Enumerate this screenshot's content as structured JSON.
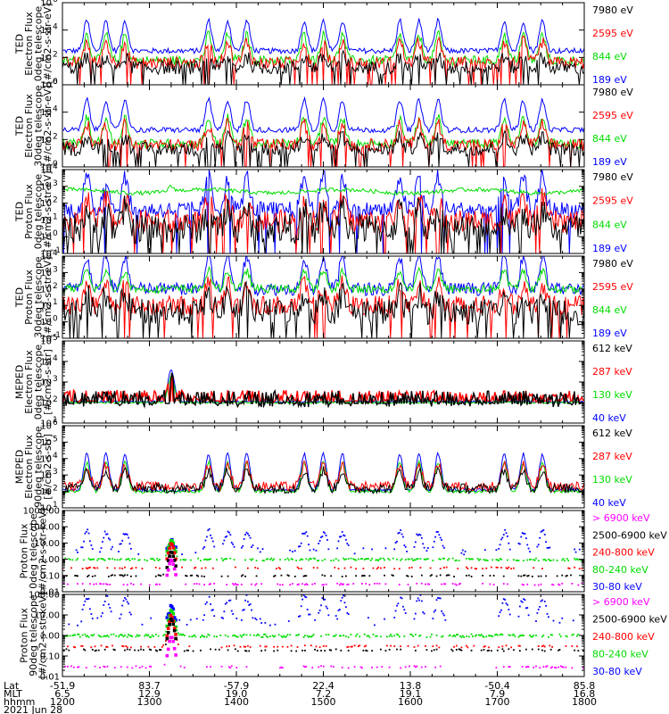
{
  "chart_data": [
    {
      "type": "line",
      "title": "",
      "ylabel_lines": [
        "TED",
        "Electron Flux",
        "0deg telescope",
        "[#/cm2-s-str-eV]"
      ],
      "scale": "log",
      "ylim": [
        1,
        1000000
      ],
      "yticks": [
        {
          "v": 1,
          "base": "10",
          "exp": "0"
        },
        {
          "v": 100,
          "base": "10",
          "exp": "2"
        },
        {
          "v": 10000,
          "base": "10",
          "exp": "4"
        },
        {
          "v": 1000000,
          "base": "10",
          "exp": "6"
        }
      ],
      "series": [
        {
          "name": "7980 eV",
          "color": "#000000",
          "baseline": 18,
          "jitter": 0.5,
          "kind": "line",
          "peak_scale": 0.35
        },
        {
          "name": "2595 eV",
          "color": "#ff0000",
          "baseline": 40,
          "jitter": 0.45,
          "kind": "line",
          "peak_scale": 0.7
        },
        {
          "name": "844 eV",
          "color": "#00dd00",
          "baseline": 60,
          "jitter": 0.35,
          "kind": "line",
          "peak_scale": 0.85
        },
        {
          "name": "189 eV",
          "color": "#0000ff",
          "baseline": 300,
          "jitter": 0.2,
          "kind": "line",
          "peak_scale": 1.0
        }
      ]
    },
    {
      "type": "line",
      "title": "",
      "ylabel_lines": [
        "TED",
        "Electron Flux",
        "30deg telescope",
        "[#/cm2-s-str-eV]"
      ],
      "scale": "log",
      "ylim": [
        1,
        1000000
      ],
      "yticks": [
        {
          "v": 1,
          "base": "10",
          "exp": "0"
        },
        {
          "v": 100,
          "base": "10",
          "exp": "2"
        },
        {
          "v": 10000,
          "base": "10",
          "exp": "4"
        },
        {
          "v": 1000000,
          "base": "10",
          "exp": "6"
        }
      ],
      "series": [
        {
          "name": "7980 eV",
          "color": "#000000",
          "baseline": 20,
          "jitter": 0.5,
          "kind": "line",
          "peak_scale": 0.4
        },
        {
          "name": "2595 eV",
          "color": "#ff0000",
          "baseline": 40,
          "jitter": 0.45,
          "kind": "line",
          "peak_scale": 0.7
        },
        {
          "name": "844 eV",
          "color": "#00dd00",
          "baseline": 50,
          "jitter": 0.35,
          "kind": "line",
          "peak_scale": 0.85
        },
        {
          "name": "189 eV",
          "color": "#0000ff",
          "baseline": 500,
          "jitter": 0.2,
          "kind": "line",
          "peak_scale": 1.0
        }
      ]
    },
    {
      "type": "line",
      "title": "",
      "ylabel_lines": [
        "TED",
        "Proton Flux",
        "0deg telescope",
        "[#/cm2-s-str-eV]"
      ],
      "scale": "log",
      "ylim": [
        0.1,
        10000
      ],
      "yticks": [
        {
          "v": 0.1,
          "base": "10",
          "exp": "-1"
        },
        {
          "v": 1,
          "base": "10",
          "exp": "0"
        },
        {
          "v": 10,
          "base": "10",
          "exp": "1"
        },
        {
          "v": 100,
          "base": "10",
          "exp": "2"
        },
        {
          "v": 1000,
          "base": "10",
          "exp": "3"
        },
        {
          "v": 10000,
          "base": "10",
          "exp": "4"
        }
      ],
      "series": [
        {
          "name": "7980 eV",
          "color": "#000000",
          "baseline": 3,
          "jitter": 0.9,
          "kind": "line",
          "peak_scale": 0.5
        },
        {
          "name": "2595 eV",
          "color": "#ff0000",
          "baseline": 8,
          "jitter": 0.7,
          "kind": "line",
          "peak_scale": 0.6
        },
        {
          "name": "844 eV",
          "color": "#00dd00",
          "baseline": 400,
          "jitter": 0.12,
          "kind": "wave",
          "peak_scale": 0.3
        },
        {
          "name": "189 eV",
          "color": "#0000ff",
          "baseline": 40,
          "jitter": 0.5,
          "kind": "line",
          "peak_scale": 0.9
        }
      ]
    },
    {
      "type": "line",
      "title": "",
      "ylabel_lines": [
        "TED",
        "Proton Flux",
        "30deg telescope",
        "[#/cm2-s-str-eV]"
      ],
      "scale": "log",
      "ylim": [
        0.1,
        10000
      ],
      "yticks": [
        {
          "v": 0.1,
          "base": "10",
          "exp": "-1"
        },
        {
          "v": 1,
          "base": "10",
          "exp": "0"
        },
        {
          "v": 10,
          "base": "10",
          "exp": "1"
        },
        {
          "v": 100,
          "base": "10",
          "exp": "2"
        },
        {
          "v": 1000,
          "base": "10",
          "exp": "3"
        },
        {
          "v": 10000,
          "base": "10",
          "exp": "4"
        }
      ],
      "series": [
        {
          "name": "7980 eV",
          "color": "#000000",
          "baseline": 4,
          "jitter": 0.8,
          "kind": "line",
          "peak_scale": 0.5
        },
        {
          "name": "2595 eV",
          "color": "#ff0000",
          "baseline": 10,
          "jitter": 0.6,
          "kind": "line",
          "peak_scale": 0.6
        },
        {
          "name": "844 eV",
          "color": "#00dd00",
          "baseline": 100,
          "jitter": 0.25,
          "kind": "line",
          "peak_scale": 0.5
        },
        {
          "name": "189 eV",
          "color": "#0000ff",
          "baseline": 100,
          "jitter": 0.4,
          "kind": "line",
          "peak_scale": 0.9
        }
      ]
    },
    {
      "type": "line",
      "title": "",
      "ylabel_lines": [
        "MEPED",
        "Electron Flux",
        "0deg telescope",
        "[#/cm2-s-str]"
      ],
      "scale": "log",
      "ylim": [
        10,
        100000
      ],
      "yticks": [
        {
          "v": 10,
          "base": "10",
          "exp": "1"
        },
        {
          "v": 100,
          "base": "10",
          "exp": "2"
        },
        {
          "v": 1000,
          "base": "10",
          "exp": "3"
        },
        {
          "v": 10000,
          "base": "10",
          "exp": "4"
        },
        {
          "v": 100000,
          "base": "10",
          "exp": "5"
        }
      ],
      "series": [
        {
          "name": "612 keV",
          "color": "#000000",
          "baseline": 150,
          "jitter": 0.4,
          "kind": "band",
          "peak_scale": 0.6
        },
        {
          "name": "287 keV",
          "color": "#ff0000",
          "baseline": 200,
          "jitter": 0.3,
          "kind": "band",
          "peak_scale": 0.7
        },
        {
          "name": "130 keV",
          "color": "#00dd00",
          "baseline": 100,
          "jitter": 0.05,
          "kind": "flat",
          "peak_scale": 0.8
        },
        {
          "name": "40 keV",
          "color": "#0000ff",
          "baseline": 110,
          "jitter": 0.05,
          "kind": "flat",
          "peak_scale": 1.0
        }
      ]
    },
    {
      "type": "line",
      "title": "",
      "ylabel_lines": [
        "MEPED",
        "Electron Flux",
        "90deg telescope",
        "[#/cm2-s-str]"
      ],
      "scale": "log",
      "ylim": [
        10,
        1000000
      ],
      "yticks": [
        {
          "v": 10,
          "base": "10",
          "exp": "1"
        },
        {
          "v": 100,
          "base": "10",
          "exp": "2"
        },
        {
          "v": 1000,
          "base": "10",
          "exp": "3"
        },
        {
          "v": 10000,
          "base": "10",
          "exp": "4"
        },
        {
          "v": 100000,
          "base": "10",
          "exp": "5"
        },
        {
          "v": 1000000,
          "base": "10",
          "exp": "6"
        }
      ],
      "series": [
        {
          "name": "612 keV",
          "color": "#000000",
          "baseline": 150,
          "jitter": 0.3,
          "kind": "hump",
          "peak_scale": 0.5
        },
        {
          "name": "287 keV",
          "color": "#ff0000",
          "baseline": 200,
          "jitter": 0.3,
          "kind": "hump",
          "peak_scale": 0.6
        },
        {
          "name": "130 keV",
          "color": "#00dd00",
          "baseline": 100,
          "jitter": 0.1,
          "kind": "hump",
          "peak_scale": 0.8
        },
        {
          "name": "40 keV",
          "color": "#0000ff",
          "baseline": 120,
          "jitter": 0.1,
          "kind": "hump",
          "peak_scale": 1.0
        }
      ]
    },
    {
      "type": "scatter",
      "title": "",
      "ylabel_lines": [
        "Proton Flux",
        "0deg telescope",
        "[#/cm2-s-str-keV]"
      ],
      "scale": "log",
      "ylim": [
        0.01,
        1000
      ],
      "yticks": [
        {
          "v": 0.01,
          "label": "0.01"
        },
        {
          "v": 0.1,
          "label": "0.10"
        },
        {
          "v": 1,
          "label": "1.00"
        },
        {
          "v": 10,
          "label": "10.00"
        },
        {
          "v": 100,
          "label": "100.00"
        },
        {
          "v": 1000,
          "label": "1000.00"
        }
      ],
      "series": [
        {
          "name": "> 6900 keV",
          "color": "#ff00ff",
          "baseline": 0.03,
          "jitter": 0,
          "kind": "sparse",
          "peak_scale": 0.1
        },
        {
          "name": "2500-6900 keV",
          "color": "#000000",
          "baseline": 0.1,
          "jitter": 0,
          "kind": "sparse",
          "peak_scale": 0.2
        },
        {
          "name": "240-800 keV",
          "color": "#ff0000",
          "baseline": 0.3,
          "jitter": 0,
          "kind": "sparse",
          "peak_scale": 0.4
        },
        {
          "name": "80-240 keV",
          "color": "#00dd00",
          "baseline": 1,
          "jitter": 0.1,
          "kind": "dots",
          "peak_scale": 0.6
        },
        {
          "name": "30-80 keV",
          "color": "#0000ff",
          "baseline": 2,
          "jitter": 0.3,
          "kind": "bursts",
          "peak_scale": 1.0
        }
      ]
    },
    {
      "type": "scatter",
      "title": "",
      "ylabel_lines": [
        "Proton Flux",
        "90deg telescope",
        "[#/cm2-s-str-keV]"
      ],
      "scale": "log",
      "ylim": [
        0.01,
        100
      ],
      "yticks": [
        {
          "v": 0.01,
          "label": "0.01"
        },
        {
          "v": 0.1,
          "label": "0.10"
        },
        {
          "v": 1,
          "label": "1.00"
        },
        {
          "v": 10,
          "label": "10.00"
        },
        {
          "v": 100,
          "label": "100.00"
        }
      ],
      "series": [
        {
          "name": "> 6900 keV",
          "color": "#ff00ff",
          "baseline": 0.03,
          "jitter": 0,
          "kind": "sparse",
          "peak_scale": 0.1
        },
        {
          "name": "2500-6900 keV",
          "color": "#000000",
          "baseline": 0.2,
          "jitter": 0,
          "kind": "sparse",
          "peak_scale": 0.2
        },
        {
          "name": "240-800 keV",
          "color": "#ff0000",
          "baseline": 0.3,
          "jitter": 0,
          "kind": "sparse",
          "peak_scale": 0.4
        },
        {
          "name": "80-240 keV",
          "color": "#00dd00",
          "baseline": 1,
          "jitter": 0.1,
          "kind": "dots",
          "peak_scale": 0.6
        },
        {
          "name": "30-80 keV",
          "color": "#0000ff",
          "baseline": 3,
          "jitter": 0.3,
          "kind": "bursts",
          "peak_scale": 1.0
        }
      ]
    }
  ],
  "x_axis": {
    "ticks": [
      {
        "lat": "-51.9",
        "mlt": "6.5",
        "hhmm": "1200"
      },
      {
        "lat": "83.7",
        "mlt": "12.9",
        "hhmm": "1300"
      },
      {
        "lat": "-57.9",
        "mlt": "19.0",
        "hhmm": "1400"
      },
      {
        "lat": "22.4",
        "mlt": "7.2",
        "hhmm": "1500"
      },
      {
        "lat": "13.8",
        "mlt": "19.1",
        "hhmm": "1600"
      },
      {
        "lat": "-50.4",
        "mlt": "7.9",
        "hhmm": "1700"
      },
      {
        "lat": "85.8",
        "mlt": "16.8",
        "hhmm": "1800"
      }
    ],
    "row_labels": {
      "lat": "Lat",
      "mlt": "MLT",
      "hhmm": "hhmm"
    },
    "date": "2021 Jun 28",
    "start_hhmm": "1200",
    "end_hhmm": "1800"
  },
  "pass_times_hours": [
    0.5,
    1.9,
    3.0,
    4.1,
    5.3
  ]
}
